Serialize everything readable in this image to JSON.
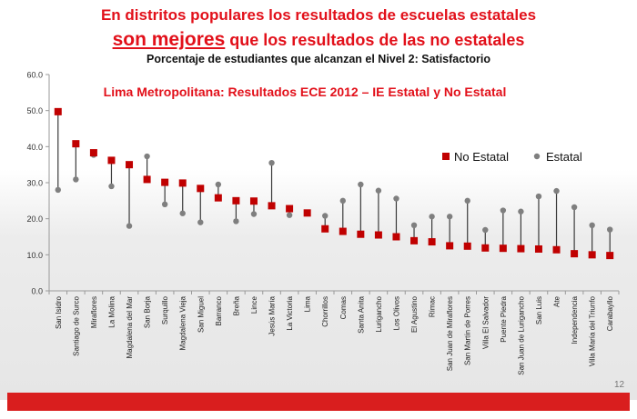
{
  "headline": {
    "line1": "En distritos populares los resultados de escuelas estatales",
    "line2_emphasis": "son mejores",
    "line2_rest": " que los resultados de las no estatales",
    "line3": "Porcentaje de estudiantes que alcanzan el Nivel 2: Satisfactorio"
  },
  "page_number": "12",
  "colors": {
    "no_estatal": "#c00000",
    "estatal": "#7f7f7f",
    "title_red": "#e2101a"
  },
  "chart_data": {
    "type": "scatter",
    "title": "Lima Metropolitana: Resultados ECE 2012 – IE Estatal y No Estatal",
    "ylim": [
      0,
      60
    ],
    "yticks": [
      "0.0",
      "10.0",
      "20.0",
      "30.0",
      "40.0",
      "50.0",
      "60.0"
    ],
    "grid": false,
    "legend_position": "right",
    "categories": [
      "San Isidro",
      "Santiago de Surco",
      "Miraflores",
      "La Molina",
      "Magdalena del Mar",
      "San Borja",
      "Surquillo",
      "Magdalena Vieja",
      "San Miguel",
      "Barranco",
      "Breña",
      "Lince",
      "Jesús María",
      "La Victoria",
      "Lima",
      "Chorrillos",
      "Comas",
      "Santa Anita",
      "Lurigancho",
      "Los Olivos",
      "El Agustino",
      "Rímac",
      "San Juan de Miraflores",
      "San Martín de Porres",
      "Villa El Salvador",
      "Puente Piedra",
      "San Juan de Lurigancho",
      "San Luis",
      "Ate",
      "Independencia",
      "Villa María del Triunfo",
      "Carabayllo"
    ],
    "series": [
      {
        "name": "No Estatal",
        "marker": "square",
        "values": [
          49.7,
          40.8,
          38.3,
          36.2,
          35.0,
          30.9,
          30.1,
          29.9,
          28.4,
          25.8,
          25.0,
          24.9,
          23.6,
          22.8,
          21.6,
          17.2,
          16.5,
          15.7,
          15.5,
          15.0,
          13.9,
          13.6,
          12.5,
          12.4,
          11.9,
          11.8,
          11.7,
          11.6,
          11.4,
          10.3,
          10.0,
          9.8
        ]
      },
      {
        "name": "Estatal",
        "marker": "circle",
        "values": [
          28.0,
          30.9,
          37.7,
          29.0,
          18.0,
          37.3,
          24.0,
          21.5,
          19.0,
          29.5,
          19.3,
          21.3,
          35.5,
          21.0,
          21.5,
          20.8,
          25.0,
          29.5,
          27.8,
          25.6,
          18.2,
          20.6,
          20.6,
          25.0,
          16.9,
          22.3,
          22.0,
          26.2,
          27.7,
          23.2,
          18.2,
          17.0
        ]
      }
    ]
  }
}
